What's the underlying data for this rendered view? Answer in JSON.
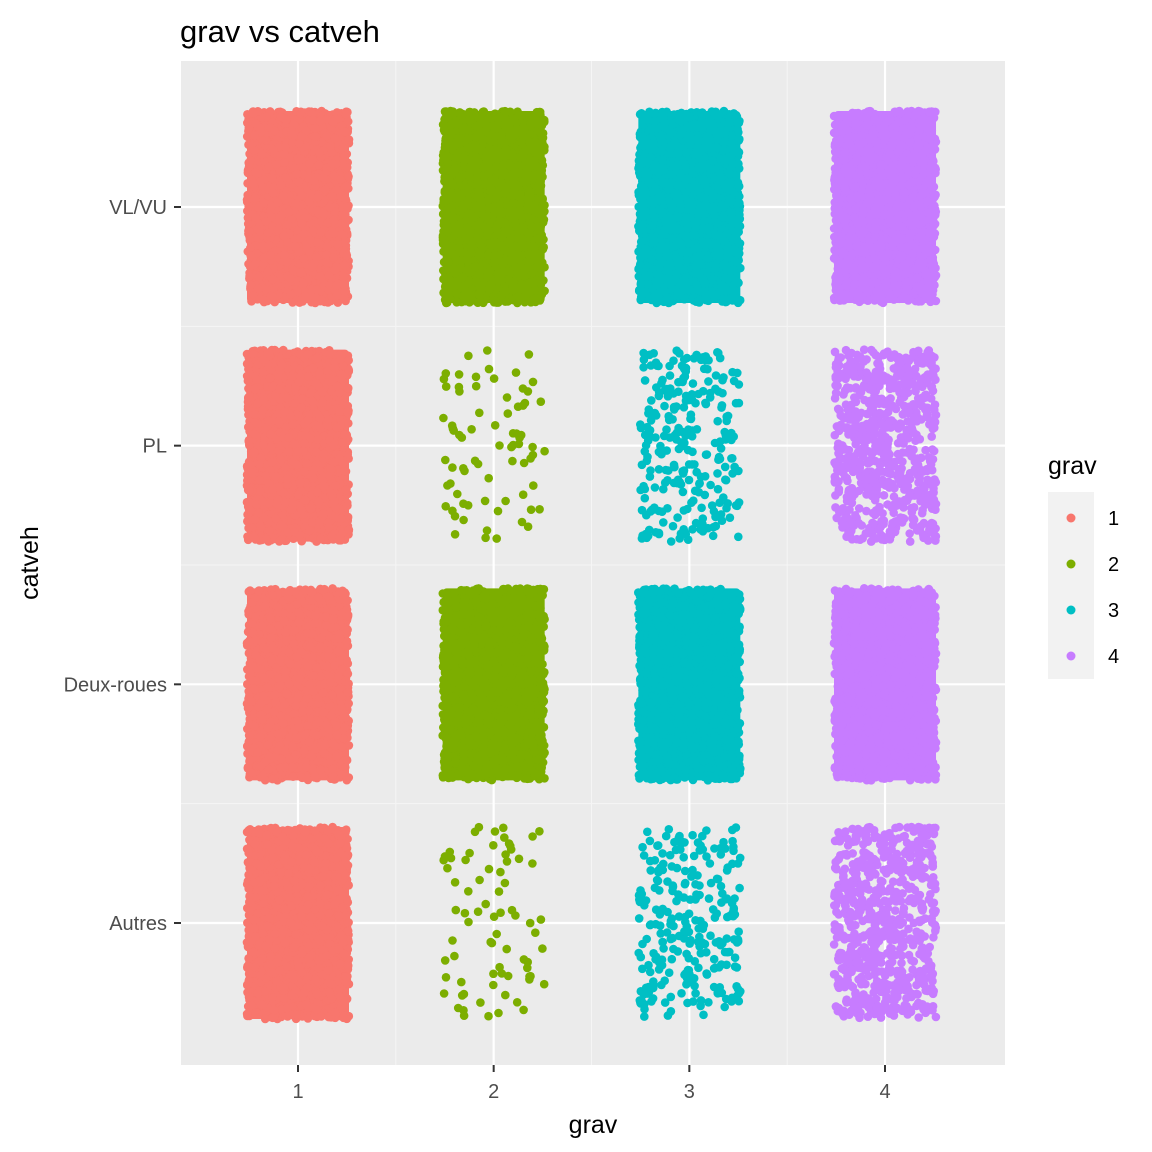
{
  "chart_data": {
    "type": "scatter",
    "title": "grav vs catveh",
    "xlabel": "grav",
    "ylabel": "catveh",
    "x_categories": [
      "1",
      "2",
      "3",
      "4"
    ],
    "y_categories": [
      "Autres",
      "Deux-roues",
      "PL",
      "VL/VU"
    ],
    "jitter": "position jitter (width 0.4, height 0.4)",
    "grid": true,
    "legend": {
      "title": "grav",
      "position": "right",
      "entries": [
        {
          "label": "1",
          "color": "#F8766D"
        },
        {
          "label": "2",
          "color": "#7CAE00"
        },
        {
          "label": "3",
          "color": "#00BFC4"
        },
        {
          "label": "4",
          "color": "#C77CFF"
        }
      ]
    },
    "groups": [
      {
        "grav": "1",
        "catveh": "VL/VU",
        "density": "dense"
      },
      {
        "grav": "2",
        "catveh": "VL/VU",
        "density": "dense"
      },
      {
        "grav": "3",
        "catveh": "VL/VU",
        "density": "dense"
      },
      {
        "grav": "4",
        "catveh": "VL/VU",
        "density": "dense"
      },
      {
        "grav": "1",
        "catveh": "PL",
        "density": "dense"
      },
      {
        "grav": "2",
        "catveh": "PL",
        "density": "sparse"
      },
      {
        "grav": "3",
        "catveh": "PL",
        "density": "medium"
      },
      {
        "grav": "4",
        "catveh": "PL",
        "density": "medium-dense"
      },
      {
        "grav": "1",
        "catveh": "Deux-roues",
        "density": "dense"
      },
      {
        "grav": "2",
        "catveh": "Deux-roues",
        "density": "dense"
      },
      {
        "grav": "3",
        "catveh": "Deux-roues",
        "density": "dense"
      },
      {
        "grav": "4",
        "catveh": "Deux-roues",
        "density": "dense"
      },
      {
        "grav": "1",
        "catveh": "Autres",
        "density": "dense"
      },
      {
        "grav": "2",
        "catveh": "Autres",
        "density": "sparse"
      },
      {
        "grav": "3",
        "catveh": "Autres",
        "density": "medium"
      },
      {
        "grav": "4",
        "catveh": "Autres",
        "density": "medium-dense"
      }
    ]
  }
}
